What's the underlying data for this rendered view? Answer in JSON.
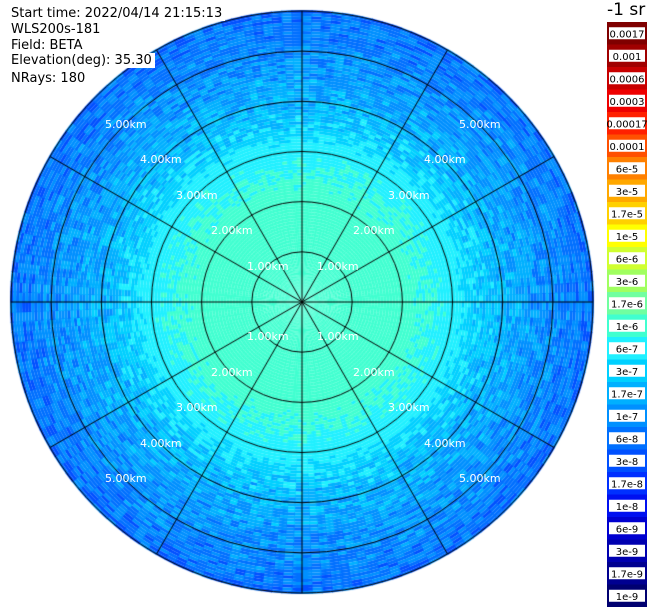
{
  "header": {
    "start_time": "Start time: 2022/04/14 21:15:13",
    "instrument": "WLS200s-181",
    "field": "Field: BETA",
    "elevation": "Elevation(deg): 35.30",
    "nrays": "NRays: 180"
  },
  "colorbar": {
    "unit": "-1 sr",
    "ticks": [
      "0.0017",
      "0.001",
      "0.0006",
      "0.0003",
      "0.00017",
      "0.0001",
      "6e-5",
      "3e-5",
      "1.7e-5",
      "1e-5",
      "6e-6",
      "3e-6",
      "1.7e-6",
      "1e-6",
      "6e-7",
      "3e-7",
      "1.7e-7",
      "1e-7",
      "6e-8",
      "3e-8",
      "1.7e-8",
      "1e-8",
      "6e-9",
      "3e-9",
      "1.7e-9",
      "1e-9"
    ],
    "colors": [
      "#7f0000",
      "#a00000",
      "#c80000",
      "#ee0000",
      "#ff2000",
      "#ff5000",
      "#ff8000",
      "#ffa800",
      "#ffd000",
      "#ffff00",
      "#d0ff30",
      "#a0ff60",
      "#70ffa0",
      "#40ffd0",
      "#20f0ff",
      "#00d0ff",
      "#00b0ff",
      "#0090ff",
      "#0070ff",
      "#0050ff",
      "#0030ff",
      "#0010f0",
      "#0000d0",
      "#0000b0",
      "#000090",
      "#000070"
    ]
  },
  "chart_data": {
    "type": "heatmap",
    "projection": "polar-ppi",
    "title": "",
    "range_rings_km": [
      1,
      2,
      3,
      4,
      5
    ],
    "ring_labels": [
      "1.00km",
      "2.00km",
      "3.00km",
      "4.00km",
      "5.00km"
    ],
    "spoke_angles_deg": [
      0,
      30,
      60,
      90,
      120,
      150,
      180,
      210,
      240,
      270,
      300,
      330
    ],
    "max_range_km": 5.8,
    "colorbar_scale": "log",
    "colorbar_range": [
      1e-09,
      0.0017
    ],
    "value_profile": [
      {
        "range_km": 0.5,
        "value": 1e-06
      },
      {
        "range_km": 2.0,
        "value": 1e-06
      },
      {
        "range_km": 3.0,
        "value": 6e-07
      },
      {
        "range_km": 3.6,
        "value": 3e-07
      },
      {
        "range_km": 4.2,
        "value": 1.7e-07
      },
      {
        "range_km": 5.0,
        "value": 1e-07
      },
      {
        "range_km": 5.8,
        "value": 6e-08
      }
    ]
  }
}
